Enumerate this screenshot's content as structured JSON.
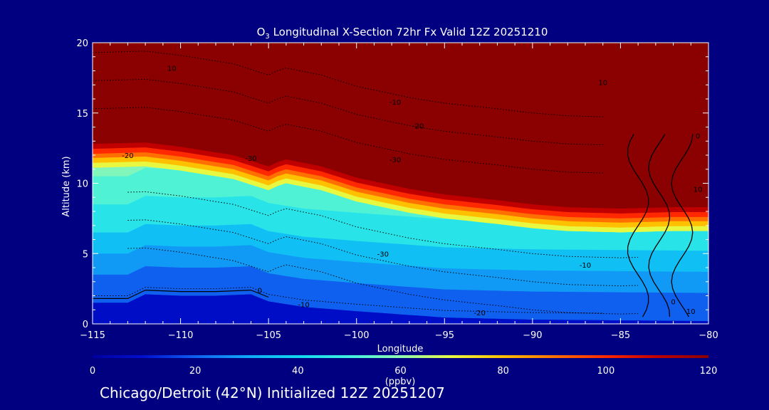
{
  "chart_data": {
    "type": "heatmap",
    "title": "O3 Longitudinal X-Section 72hr  Fx Valid 12Z 20251210",
    "title_parts": {
      "species_main": "O",
      "species_sub": "3",
      "rest": " Longitudinal X-Section 72hr  Fx Valid 12Z 20251210"
    },
    "xlabel": "Longitude",
    "ylabel": "Altitude (km)",
    "xlim": [
      -115,
      -80
    ],
    "ylim": [
      0,
      20
    ],
    "xticks": [
      -115,
      -110,
      -105,
      -100,
      -95,
      -90,
      -85,
      -80
    ],
    "xtick_labels": [
      "−115",
      "−110",
      "−105",
      "−100",
      "−95",
      "−90",
      "−85",
      "−80"
    ],
    "yticks": [
      0,
      5,
      10,
      15,
      20
    ],
    "ytick_labels": [
      "0",
      "5",
      "10",
      "15",
      "20"
    ],
    "colorbar": {
      "min": 0,
      "max": 120,
      "ticks": [
        0,
        20,
        40,
        60,
        80,
        100,
        120
      ],
      "tick_labels": [
        "0",
        "20",
        "40",
        "60",
        "80",
        "100",
        "120"
      ],
      "unit_label": "(ppbv)",
      "stops": [
        {
          "v": 0,
          "c": "#0000a0"
        },
        {
          "v": 10,
          "c": "#0010d0"
        },
        {
          "v": 20,
          "c": "#1060f0"
        },
        {
          "v": 30,
          "c": "#10a8f8"
        },
        {
          "v": 40,
          "c": "#10d8f0"
        },
        {
          "v": 50,
          "c": "#40f0e0"
        },
        {
          "v": 60,
          "c": "#90f8b0"
        },
        {
          "v": 70,
          "c": "#e8f840"
        },
        {
          "v": 80,
          "c": "#ffc000"
        },
        {
          "v": 90,
          "c": "#ff7000"
        },
        {
          "v": 100,
          "c": "#ff2800"
        },
        {
          "v": 110,
          "c": "#c00000"
        },
        {
          "v": 120,
          "c": "#8b0000"
        }
      ]
    },
    "terrain_km": {
      "lon": [
        -115,
        -113,
        -112,
        -110,
        -108,
        -106,
        -105,
        -103,
        -100,
        -95,
        -90,
        -85,
        -80
      ],
      "alt": [
        1.5,
        1.5,
        2.1,
        2.0,
        2.0,
        2.1,
        1.6,
        1.2,
        0.9,
        0.45,
        0.3,
        0.25,
        0.2
      ]
    },
    "tropopause_km": {
      "lon": [
        -115,
        -112,
        -110,
        -107,
        -105,
        -104.5,
        -104,
        -102,
        -100,
        -97,
        -95,
        -92,
        -90,
        -88,
        -85,
        -82,
        -80
      ],
      "alt": [
        12.8,
        12.9,
        12.6,
        12.0,
        11.2,
        11.5,
        11.7,
        11.2,
        10.4,
        9.6,
        9.2,
        8.8,
        8.5,
        8.3,
        8.2,
        8.3,
        8.3
      ]
    },
    "ozone_profile": {
      "alt_km": [
        0,
        2,
        3.5,
        5,
        7,
        9,
        10,
        11,
        12
      ],
      "ppbv": [
        12,
        20,
        28,
        35,
        45,
        52,
        58,
        65,
        70
      ]
    },
    "contour_labels": [
      {
        "text": "10",
        "lon": -110.5,
        "alt": 18.2
      },
      {
        "text": "-10",
        "lon": -97.8,
        "alt": 15.8
      },
      {
        "text": "-20",
        "lon": -96.5,
        "alt": 14.1
      },
      {
        "text": "10",
        "lon": -86.0,
        "alt": 17.2
      },
      {
        "text": "-20",
        "lon": -113.0,
        "alt": 12.0
      },
      {
        "text": "-30",
        "lon": -106.0,
        "alt": 11.8
      },
      {
        "text": "-30",
        "lon": -97.8,
        "alt": 11.7
      },
      {
        "text": "0",
        "lon": -80.6,
        "alt": 13.4
      },
      {
        "text": "10",
        "lon": -80.6,
        "alt": 9.6
      },
      {
        "text": "-30",
        "lon": -98.5,
        "alt": 5.0
      },
      {
        "text": "-10",
        "lon": -87.0,
        "alt": 4.2
      },
      {
        "text": "-10",
        "lon": -103.0,
        "alt": 1.4
      },
      {
        "text": "-20",
        "lon": -93.0,
        "alt": 0.8
      },
      {
        "text": "0",
        "lon": -105.5,
        "alt": 2.4
      },
      {
        "text": "0",
        "lon": -82.0,
        "alt": 1.6
      },
      {
        "text": "10",
        "lon": -81.0,
        "alt": 0.9
      }
    ]
  },
  "footer_text": "Chicago/Detroit (42°N) Initialized 12Z 20251207"
}
